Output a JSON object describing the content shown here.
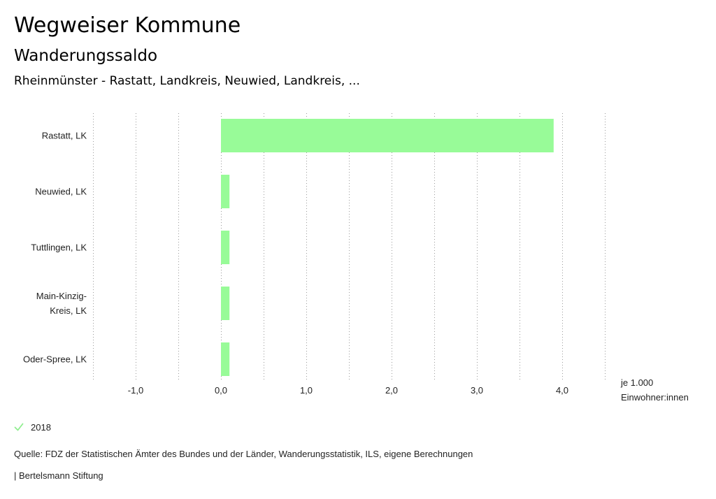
{
  "header": {
    "title": "Wegweiser Kommune",
    "subtitle": "Wanderungssaldo",
    "region": "Rheinmünster - Rastatt, Landkreis, Neuwied, Landkreis, ..."
  },
  "chart_data": {
    "type": "bar",
    "orientation": "horizontal",
    "categories": [
      "Rastatt, LK",
      "Neuwied, LK",
      "Tuttlingen, LK",
      "Main-Kinzig-Kreis, LK",
      "Oder-Spree, LK"
    ],
    "category_lines": [
      [
        "Rastatt, LK"
      ],
      [
        "Neuwied, LK"
      ],
      [
        "Tuttlingen, LK"
      ],
      [
        "Main-Kinzig-",
        "Kreis, LK"
      ],
      [
        "Oder-Spree, LK"
      ]
    ],
    "series": [
      {
        "name": "2018",
        "values": [
          3.9,
          0.1,
          0.1,
          0.1,
          0.1
        ]
      }
    ],
    "xlim": [
      -1.5,
      4.5
    ],
    "xticks": [
      -1.0,
      0.0,
      1.0,
      2.0,
      3.0,
      4.0
    ],
    "xtick_labels": [
      "-1,0",
      "0,0",
      "1,0",
      "2,0",
      "3,0",
      "4,0"
    ],
    "xlabel_lines": [
      "je 1.000",
      "Einwohner:innen"
    ],
    "grid": true,
    "bar_color": "#98fb98"
  },
  "legend": {
    "label": "2018",
    "check_color": "#90ee90"
  },
  "footer": {
    "source": "Quelle: FDZ der Statistischen Ämter des Bundes und der Länder, Wanderungsstatistik, ILS, eigene Berechnungen",
    "credit": "| Bertelsmann Stiftung"
  }
}
